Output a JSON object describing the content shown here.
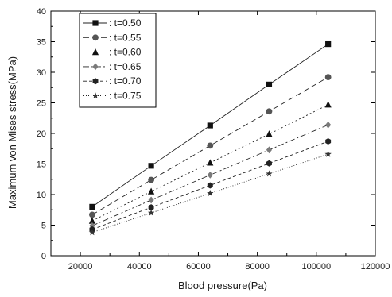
{
  "chart_data": {
    "type": "line",
    "title": "",
    "xlabel": "Blood pressure(Pa)",
    "ylabel": "Maximum von Mises stress(MPa)",
    "xlim": [
      10000,
      120000
    ],
    "ylim": [
      0,
      40
    ],
    "x_ticks": [
      20000,
      40000,
      60000,
      80000,
      100000,
      120000
    ],
    "y_ticks": [
      0,
      5,
      10,
      15,
      20,
      25,
      30,
      35,
      40
    ],
    "grid": false,
    "legend_position": "top-left",
    "x": [
      24000,
      44000,
      64000,
      84000,
      104000
    ],
    "series": [
      {
        "name": ": t=0.50",
        "marker": "square",
        "dash": "solid",
        "values": [
          8.0,
          14.7,
          21.3,
          28.0,
          34.6
        ]
      },
      {
        "name": ": t=0.55",
        "marker": "circle",
        "dash": "dashed",
        "values": [
          6.7,
          12.4,
          18.0,
          23.6,
          29.2
        ]
      },
      {
        "name": ": t=0.60",
        "marker": "triangle",
        "dash": "dotted",
        "values": [
          5.7,
          10.5,
          15.2,
          19.9,
          24.7
        ]
      },
      {
        "name": ": t=0.65",
        "marker": "diamond",
        "dash": "dashdot",
        "values": [
          4.9,
          9.1,
          13.2,
          17.3,
          21.4
        ]
      },
      {
        "name": ": t=0.70",
        "marker": "hexagon",
        "dash": "shortdash",
        "values": [
          4.3,
          7.9,
          11.5,
          15.1,
          18.7
        ]
      },
      {
        "name": ": t=0.75",
        "marker": "star",
        "dash": "finedot",
        "values": [
          3.8,
          7.0,
          10.2,
          13.4,
          16.6
        ]
      }
    ],
    "colors": {
      "square": "#111111",
      "circle": "#555555",
      "triangle": "#111111",
      "diamond": "#7a7a7a",
      "hexagon": "#222222",
      "star": "#333333"
    }
  }
}
